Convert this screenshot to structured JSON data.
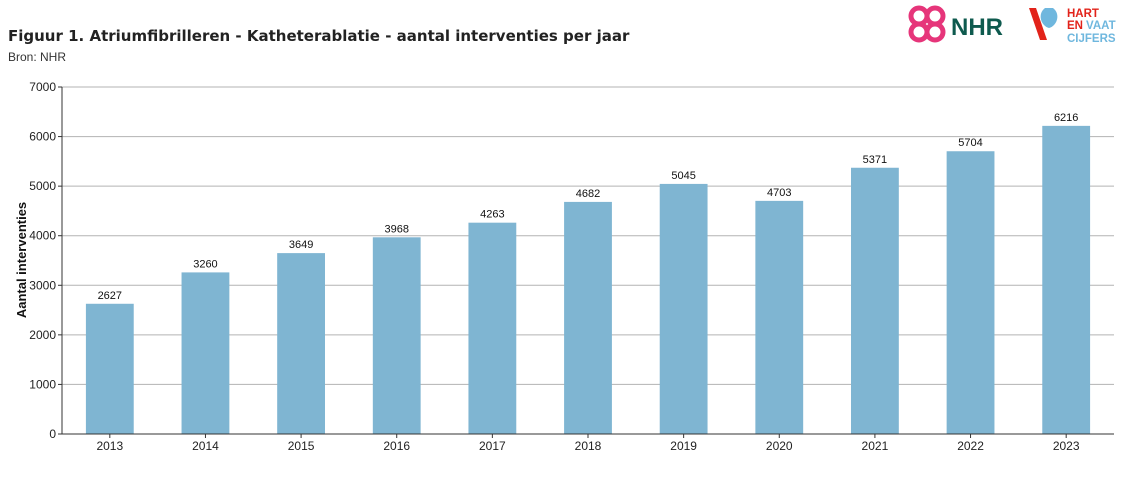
{
  "header": {
    "title": "Figuur 1. Atriumfibrilleren - Katheterablatie - aantal interventies per jaar",
    "source": "Bron: NHR"
  },
  "logos": {
    "nhr": "NHR",
    "hart_line1": "HART",
    "hart_line2": "EN",
    "hart_line2b": "VAAT",
    "hart_line3": "CIJFERS",
    "nhr_color": "#e6357a",
    "nhr_text_color": "#0e5a4e",
    "hart_red": "#e2231a",
    "hart_blue": "#6fb7de"
  },
  "chart_data": {
    "type": "bar",
    "title": "",
    "xlabel": "",
    "ylabel": "Aantal interventies",
    "categories": [
      "2013",
      "2014",
      "2015",
      "2016",
      "2017",
      "2018",
      "2019",
      "2020",
      "2021",
      "2022",
      "2023"
    ],
    "values": [
      2627,
      3260,
      3649,
      3968,
      4263,
      4682,
      5045,
      4703,
      5371,
      5704,
      6216
    ],
    "ylim": [
      0,
      7000
    ],
    "yticks": [
      0,
      1000,
      2000,
      3000,
      4000,
      5000,
      6000,
      7000
    ],
    "grid": true,
    "bar_color": "#7fb5d2",
    "data_labels": true
  }
}
